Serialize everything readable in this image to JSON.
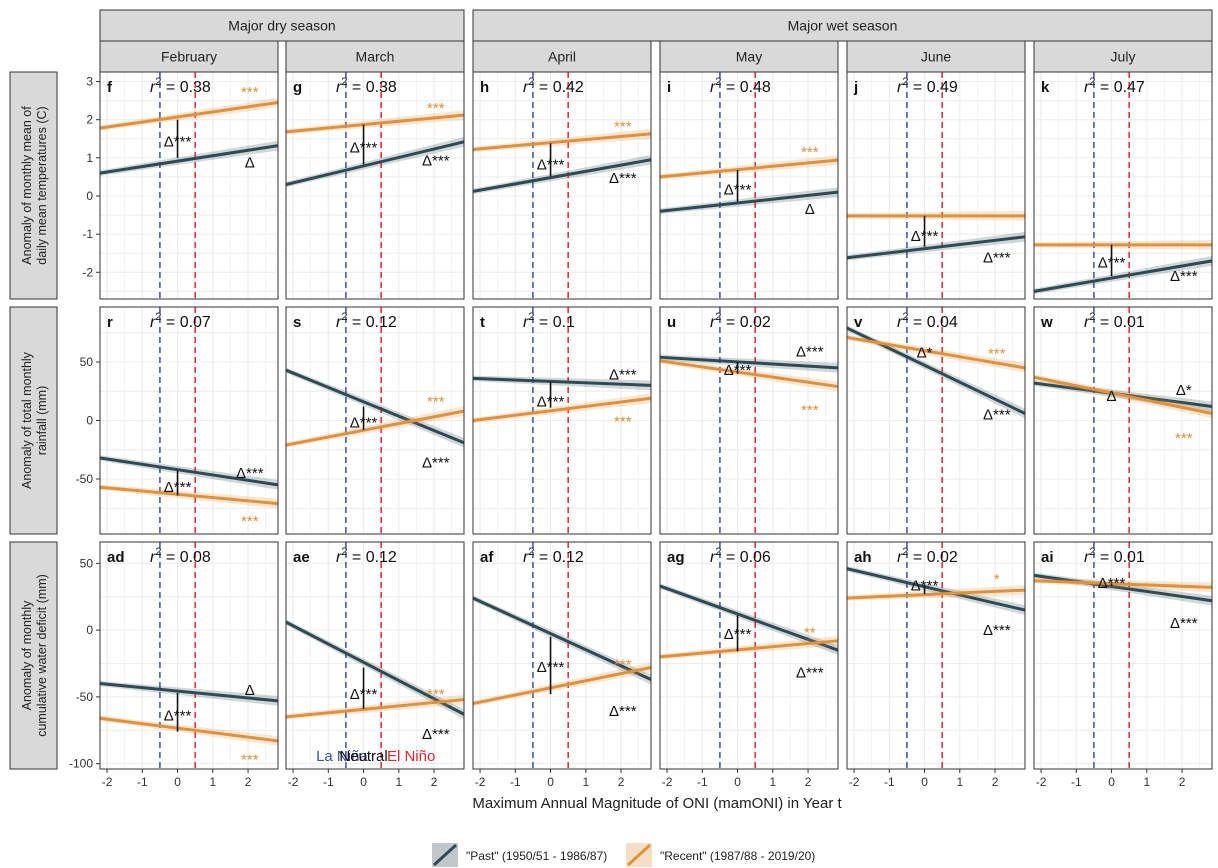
{
  "figure": {
    "xlabel": "Maximum Annual Magnitude of ONI (mamONI) in Year t",
    "season_headers": [
      {
        "label": "Major dry season",
        "from": 0,
        "to": 1
      },
      {
        "label": "Major wet season",
        "from": 2,
        "to": 5
      }
    ],
    "months": [
      "February",
      "March",
      "April",
      "May",
      "June",
      "July"
    ],
    "enso_labels": {
      "la_nina": "La Niña",
      "neutral": "Neutral",
      "el_nino": "El Niño"
    },
    "legend": [
      {
        "label": "\"Past\" (1950/51 - 1986/87)",
        "color": "#2e4a54"
      },
      {
        "label": "\"Recent\" (1987/88 - 2019/20)",
        "color": "#e0913a"
      }
    ],
    "colors": {
      "past": "#2e4a54",
      "recent": "#e0913a",
      "la_nina_line": "#3f4fa0",
      "el_nino_line": "#e8242a",
      "grid": "#ececec",
      "strip": "#d9d9d9"
    }
  },
  "chart_data": [
    {
      "type": "line",
      "ylabel": "Anomaly of monthly mean of daily mean temperatures (C)",
      "ylabel_lines": [
        "Anomaly of monthly mean of",
        "daily mean temperatures (C)"
      ],
      "x_range": [
        -2.2,
        2.85
      ],
      "x_ticks": [
        -2,
        -1,
        0,
        1,
        2
      ],
      "x_tick_labels": [
        "-2",
        "-1",
        "0",
        "1",
        "2"
      ],
      "enso_thresholds": [
        -0.5,
        0.5
      ],
      "ylim": [
        -2.7,
        3.25
      ],
      "y_ticks": [
        -2,
        -1,
        0,
        1,
        2,
        3
      ],
      "panels": [
        {
          "id": "f",
          "r2_value": "0.38",
          "past": {
            "y": [
              0.6,
              1.32
            ]
          },
          "recent": {
            "y": [
              1.78,
              2.45
            ]
          },
          "past_label": {
            "text": "Δ",
            "x": 2.05,
            "y": 0.9
          },
          "recent_label": {
            "text": "***",
            "x": 2.05,
            "y": 2.75
          },
          "center_label": {
            "text": "Δ***",
            "x": 0,
            "y": 1.45
          },
          "center_bar": [
            1.0,
            2.0
          ]
        },
        {
          "id": "g",
          "r2_value": "0.38",
          "past": {
            "y": [
              0.3,
              1.42
            ]
          },
          "recent": {
            "y": [
              1.68,
              2.12
            ]
          },
          "past_label": {
            "text": "Δ***",
            "x": 2.05,
            "y": 0.95
          },
          "recent_label": {
            "text": "***",
            "x": 2.05,
            "y": 2.33
          },
          "center_label": {
            "text": "Δ***",
            "x": 0,
            "y": 1.3
          },
          "center_bar": [
            0.83,
            1.87
          ]
        },
        {
          "id": "h",
          "r2_value": "0.42",
          "past": {
            "y": [
              0.12,
              0.95
            ]
          },
          "recent": {
            "y": [
              1.22,
              1.63
            ]
          },
          "past_label": {
            "text": "Δ***",
            "x": 2.05,
            "y": 0.5
          },
          "recent_label": {
            "text": "***",
            "x": 2.05,
            "y": 1.85
          },
          "center_label": {
            "text": "Δ***",
            "x": 0,
            "y": 0.85
          },
          "center_bar": [
            0.52,
            1.38
          ]
        },
        {
          "id": "i",
          "r2_value": "0.48",
          "past": {
            "y": [
              -0.4,
              0.1
            ]
          },
          "recent": {
            "y": [
              0.5,
              0.94
            ]
          },
          "past_label": {
            "text": "Δ",
            "x": 2.05,
            "y": -0.32
          },
          "recent_label": {
            "text": "***",
            "x": 2.05,
            "y": 1.18
          },
          "center_label": {
            "text": "Δ***",
            "x": 0,
            "y": 0.2
          },
          "center_bar": [
            -0.15,
            0.68
          ]
        },
        {
          "id": "j",
          "r2_value": "0.49",
          "past": {
            "y": [
              -1.62,
              -1.07
            ]
          },
          "recent": {
            "y": [
              -0.52,
              -0.52
            ]
          },
          "past_label": {
            "text": "Δ***",
            "x": 2.05,
            "y": -1.58
          },
          "recent_label": {
            "text": "",
            "x": 2.05,
            "y": -0.3
          },
          "center_label": {
            "text": "Δ***",
            "x": 0,
            "y": -1.02
          },
          "center_bar": [
            -1.33,
            -0.52
          ]
        },
        {
          "id": "k",
          "r2_value": "0.47",
          "past": {
            "y": [
              -2.5,
              -1.7
            ]
          },
          "recent": {
            "y": [
              -1.28,
              -1.28
            ]
          },
          "past_label": {
            "text": "Δ***",
            "x": 2.05,
            "y": -2.07
          },
          "recent_label": {
            "text": "",
            "x": 2.05,
            "y": -1.0
          },
          "center_label": {
            "text": "Δ***",
            "x": 0,
            "y": -1.72
          },
          "center_bar": [
            -2.1,
            -1.28
          ]
        }
      ]
    },
    {
      "type": "line",
      "ylabel": "Anomaly of total monthly rainfall (mm)",
      "ylabel_lines": [
        "Anomaly of total monthly",
        "rainfall (mm)"
      ],
      "x_range": [
        -2.2,
        2.85
      ],
      "x_ticks": [
        -2,
        -1,
        0,
        1,
        2
      ],
      "x_tick_labels": [
        "-2",
        "-1",
        "0",
        "1",
        "2"
      ],
      "enso_thresholds": [
        -0.5,
        0.5
      ],
      "ylim": [
        -97,
        97
      ],
      "y_ticks": [
        -50,
        0,
        50
      ],
      "panels": [
        {
          "id": "r",
          "r2_value": "0.07",
          "past": {
            "y": [
              -32,
              -55
            ]
          },
          "recent": {
            "y": [
              -57,
              -71
            ]
          },
          "past_label": {
            "text": "Δ***",
            "x": 2.05,
            "y": -44
          },
          "recent_label": {
            "text": "***",
            "x": 2.05,
            "y": -85
          },
          "center_label": {
            "text": "Δ***",
            "x": 0,
            "y": -56
          },
          "center_bar": [
            -43,
            -64
          ]
        },
        {
          "id": "s",
          "r2_value": "0.12",
          "past": {
            "y": [
              43,
              -19
            ]
          },
          "recent": {
            "y": [
              -21,
              8
            ]
          },
          "past_label": {
            "text": "Δ***",
            "x": 2.05,
            "y": -35
          },
          "recent_label": {
            "text": "***",
            "x": 2.05,
            "y": 17
          },
          "center_label": {
            "text": "Δ***",
            "x": 0,
            "y": -1
          },
          "center_bar": [
            12,
            -8
          ]
        },
        {
          "id": "t",
          "r2_value": "0.1",
          "past": {
            "y": [
              36,
              30
            ]
          },
          "recent": {
            "y": [
              0,
              19
            ]
          },
          "past_label": {
            "text": "Δ***",
            "x": 2.05,
            "y": 40
          },
          "recent_label": {
            "text": "***",
            "x": 2.05,
            "y": 0
          },
          "center_label": {
            "text": "Δ***",
            "x": 0,
            "y": 17
          },
          "center_bar": [
            33,
            11
          ]
        },
        {
          "id": "u",
          "r2_value": "0.02",
          "past": {
            "y": [
              54,
              45
            ]
          },
          "recent": {
            "y": [
              51,
              29
            ]
          },
          "past_label": {
            "text": "Δ***",
            "x": 2.05,
            "y": 60
          },
          "recent_label": {
            "text": "***",
            "x": 2.05,
            "y": 10
          },
          "center_label": {
            "text": "Δ***",
            "x": 0,
            "y": 44
          },
          "center_bar": [
            50,
            40
          ]
        },
        {
          "id": "v",
          "r2_value": "0.04",
          "past": {
            "y": [
              79,
              6
            ]
          },
          "recent": {
            "y": [
              71,
              45
            ]
          },
          "past_label": {
            "text": "Δ***",
            "x": 2.05,
            "y": 6
          },
          "recent_label": {
            "text": "***",
            "x": 2.05,
            "y": 58
          },
          "center_label": {
            "text": "Δ*",
            "x": 0,
            "y": 59
          },
          "center_bar": [
            58,
            58
          ]
        },
        {
          "id": "w",
          "r2_value": "0.01",
          "past": {
            "y": [
              32,
              12
            ]
          },
          "recent": {
            "y": [
              37,
              6
            ]
          },
          "past_label": {
            "text": "Δ*",
            "x": 2.05,
            "y": 27
          },
          "recent_label": {
            "text": "***",
            "x": 2.05,
            "y": -14
          },
          "center_label": {
            "text": "Δ",
            "x": 0,
            "y": 22
          },
          "center_bar": [
            22,
            22
          ]
        }
      ]
    },
    {
      "type": "line",
      "ylabel": "Anomaly of monthly cumulative water deficit (mm)",
      "ylabel_lines": [
        "Anomaly of monthly",
        "cumulative water deficit (mm)"
      ],
      "x_range": [
        -2.2,
        2.85
      ],
      "x_ticks": [
        -2,
        -1,
        0,
        1,
        2
      ],
      "x_tick_labels": [
        "-2",
        "-1",
        "0",
        "1",
        "2"
      ],
      "enso_thresholds": [
        -0.5,
        0.5
      ],
      "ylim": [
        -104,
        66
      ],
      "y_ticks": [
        -100,
        -50,
        0,
        50
      ],
      "panels": [
        {
          "id": "ad",
          "r2_value": "0.08",
          "past": {
            "y": [
              -40,
              -53
            ]
          },
          "recent": {
            "y": [
              -66,
              -83
            ]
          },
          "past_label": {
            "text": "Δ",
            "x": 2.05,
            "y": -44
          },
          "recent_label": {
            "text": "***",
            "x": 2.05,
            "y": -96
          },
          "center_label": {
            "text": "Δ***",
            "x": 0,
            "y": -63
          },
          "center_bar": [
            -47,
            -76
          ]
        },
        {
          "id": "ae",
          "r2_value": "0.12",
          "past": {
            "y": [
              6,
              -63
            ]
          },
          "recent": {
            "y": [
              -65,
              -52
            ]
          },
          "past_label": {
            "text": "Δ***",
            "x": 2.05,
            "y": -77
          },
          "recent_label": {
            "text": "***",
            "x": 2.05,
            "y": -47
          },
          "center_label": {
            "text": "Δ***",
            "x": 0,
            "y": -47
          },
          "center_bar": [
            -28,
            -59
          ]
        },
        {
          "id": "af",
          "r2_value": "0.12",
          "past": {
            "y": [
              24,
              -37
            ]
          },
          "recent": {
            "y": [
              -55,
              -28
            ]
          },
          "past_label": {
            "text": "Δ***",
            "x": 2.05,
            "y": -60
          },
          "recent_label": {
            "text": "***",
            "x": 2.05,
            "y": -25
          },
          "center_label": {
            "text": "Δ***",
            "x": 0,
            "y": -27
          },
          "center_bar": [
            -5,
            -48
          ]
        },
        {
          "id": "ag",
          "r2_value": "0.06",
          "past": {
            "y": [
              33,
              -15
            ]
          },
          "recent": {
            "y": [
              -20,
              -8
            ]
          },
          "past_label": {
            "text": "Δ***",
            "x": 2.05,
            "y": -31
          },
          "recent_label": {
            "text": "**",
            "x": 2.05,
            "y": -1
          },
          "center_label": {
            "text": "Δ***",
            "x": 0,
            "y": -2
          },
          "center_bar": [
            11,
            -16
          ]
        },
        {
          "id": "ah",
          "r2_value": "0.02",
          "past": {
            "y": [
              46,
              15
            ]
          },
          "recent": {
            "y": [
              24,
              30
            ]
          },
          "past_label": {
            "text": "Δ***",
            "x": 2.05,
            "y": 1
          },
          "recent_label": {
            "text": "*",
            "x": 2.05,
            "y": 39
          },
          "center_label": {
            "text": "Δ***",
            "x": 0,
            "y": 34
          },
          "center_bar": [
            33,
            27
          ]
        },
        {
          "id": "ai",
          "r2_value": "0.01",
          "past": {
            "y": [
              41,
              22
            ]
          },
          "recent": {
            "y": [
              37,
              32
            ]
          },
          "past_label": {
            "text": "Δ***",
            "x": 2.05,
            "y": 6
          },
          "recent_label": {
            "text": "",
            "x": 2.05,
            "y": 40
          },
          "center_label": {
            "text": "Δ***",
            "x": 0,
            "y": 36
          },
          "center_bar": [
            33,
            35
          ]
        }
      ]
    }
  ]
}
